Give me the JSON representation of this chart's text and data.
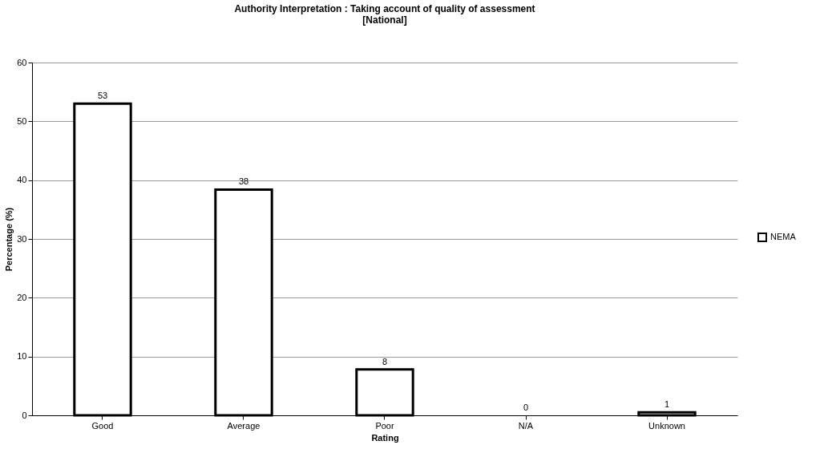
{
  "chart_data": {
    "type": "bar",
    "title": [
      "Authority Interpretation : Taking account of quality of assessment",
      "[National]"
    ],
    "xlabel": "Rating",
    "ylabel": "Percentage (%)",
    "categories": [
      "Good",
      "Average",
      "Poor",
      "N/A",
      "Unknown"
    ],
    "series": [
      {
        "name": "NEMA",
        "color": "#ffffff",
        "values": [
          53,
          38.4,
          7.8,
          0,
          0.5
        ],
        "value_labels": [
          "53",
          "38",
          "8",
          "0",
          "1"
        ]
      }
    ],
    "ylim": [
      0,
      60
    ],
    "yticks": [
      0,
      10,
      20,
      30,
      40,
      50,
      60
    ],
    "grid": "y",
    "legend": "right"
  }
}
